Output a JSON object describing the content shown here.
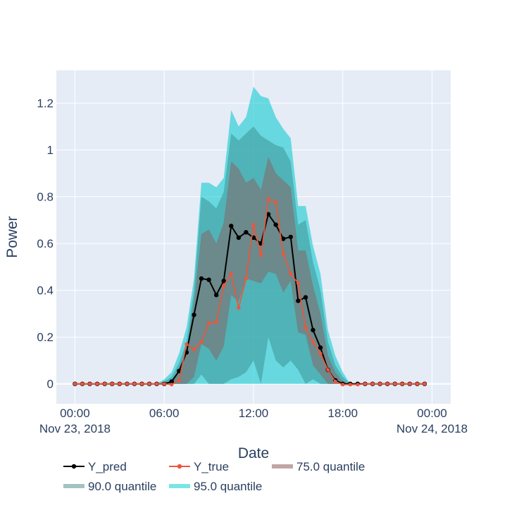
{
  "chart_data": {
    "type": "line",
    "xlabel": "Date",
    "ylabel": "Power",
    "x_domain_hours": [
      -1.25,
      25.25
    ],
    "x_ticks": [
      {
        "hour": 0,
        "time": "00:00",
        "date": "Nov 23, 2018"
      },
      {
        "hour": 6,
        "time": "06:00",
        "date": ""
      },
      {
        "hour": 12,
        "time": "12:00",
        "date": ""
      },
      {
        "hour": 18,
        "time": "18:00",
        "date": ""
      },
      {
        "hour": 24,
        "time": "00:00",
        "date": "Nov 24, 2018"
      }
    ],
    "ylim": [
      -0.085,
      1.34
    ],
    "y_ticks": [
      0,
      0.2,
      0.4,
      0.6,
      0.8,
      1,
      1.2
    ],
    "y_tick_labels": [
      "0",
      "0.2",
      "0.4",
      "0.6",
      "0.8",
      "1",
      "1.2"
    ],
    "grid": true,
    "legend_position": "bottom-left",
    "x_hours": [
      0,
      0.5,
      1,
      1.5,
      2,
      2.5,
      3,
      3.5,
      4,
      4.5,
      5,
      5.5,
      6,
      6.5,
      7,
      7.5,
      8,
      8.5,
      9,
      9.5,
      10,
      10.5,
      11,
      11.5,
      12,
      12.5,
      13,
      13.5,
      14,
      14.5,
      15,
      15.5,
      16,
      16.5,
      17,
      17.5,
      18,
      18.5,
      19,
      19.5,
      20,
      20.5,
      21,
      21.5,
      22,
      22.5,
      23,
      23.5
    ],
    "series": [
      {
        "name": "Y_pred",
        "color": "#000000",
        "values": [
          0,
          0,
          0,
          0,
          0,
          0,
          0,
          0,
          0,
          0,
          0,
          0,
          0,
          0.01,
          0.055,
          0.135,
          0.295,
          0.45,
          0.445,
          0.38,
          0.44,
          0.675,
          0.625,
          0.648,
          0.625,
          0.6,
          0.725,
          0.68,
          0.62,
          0.628,
          0.355,
          0.37,
          0.23,
          0.155,
          0.06,
          0.015,
          0,
          0,
          0,
          0,
          0,
          0,
          0,
          0,
          0,
          0,
          0,
          0
        ]
      },
      {
        "name": "Y_true",
        "color": "#ef553b",
        "values": [
          0,
          0,
          0,
          0,
          0,
          0,
          0,
          0,
          0,
          0,
          0,
          0,
          0,
          -0.003,
          0.015,
          0.17,
          0.148,
          0.18,
          0.26,
          0.265,
          0.42,
          0.47,
          0.325,
          0.45,
          0.68,
          0.55,
          0.79,
          0.775,
          0.555,
          0.47,
          0.43,
          0.24,
          0.18,
          0.13,
          0.06,
          0.01,
          -0.003,
          -0.003,
          -0.003,
          0,
          0,
          0,
          0,
          0,
          0,
          0,
          0,
          0
        ]
      }
    ],
    "bands": [
      {
        "name": "95.0 quantile",
        "legend_color": "#7ae6e4",
        "fill": "rgba(0,200,205,0.55)",
        "upper": [
          0,
          0,
          0,
          0,
          0,
          0,
          0,
          0,
          0,
          0,
          0,
          0,
          0.02,
          0.05,
          0.13,
          0.24,
          0.45,
          0.86,
          0.86,
          0.84,
          0.88,
          1.17,
          1.1,
          1.14,
          1.27,
          1.23,
          1.22,
          1.14,
          1.09,
          1.05,
          0.76,
          0.76,
          0.59,
          0.47,
          0.23,
          0.12,
          0.05,
          0,
          0,
          0,
          0,
          0,
          0,
          0,
          0,
          0,
          0,
          0
        ],
        "lower": [
          0,
          0,
          0,
          0,
          0,
          0,
          0,
          0,
          0,
          0,
          0,
          0,
          0,
          0,
          0,
          0,
          0,
          0,
          0,
          0,
          0,
          0,
          0,
          0,
          0,
          0,
          0,
          0,
          0,
          0,
          0,
          0,
          0,
          0,
          0,
          0,
          0,
          0,
          0,
          0,
          0,
          0,
          0,
          0,
          0,
          0,
          0,
          0
        ]
      },
      {
        "name": "90.0 quantile",
        "legend_color": "#a3c3c2",
        "fill": "rgba(60,150,150,0.55)",
        "upper": [
          0,
          0,
          0,
          0,
          0,
          0,
          0,
          0,
          0,
          0,
          0,
          0,
          0.01,
          0.03,
          0.09,
          0.18,
          0.4,
          0.8,
          0.78,
          0.75,
          0.82,
          1.07,
          1.04,
          1.07,
          1.1,
          1.06,
          1.04,
          1.02,
          1.01,
          0.95,
          0.68,
          0.7,
          0.52,
          0.4,
          0.18,
          0.08,
          0.03,
          0,
          0,
          0,
          0,
          0,
          0,
          0,
          0,
          0,
          0,
          0
        ],
        "lower": [
          0,
          0,
          0,
          0,
          0,
          0,
          0,
          0,
          0,
          0,
          0,
          0,
          0,
          0,
          0,
          0,
          0,
          0.04,
          0,
          0,
          0,
          0.02,
          0.03,
          0.05,
          0.1,
          0,
          0.2,
          0.1,
          0.07,
          0.1,
          0.06,
          0,
          0.02,
          0,
          0,
          0,
          0,
          0,
          0,
          0,
          0,
          0,
          0,
          0,
          0,
          0,
          0,
          0
        ]
      },
      {
        "name": "75.0 quantile",
        "legend_color": "#c0a6a6",
        "fill": "rgba(125,115,115,0.65)",
        "upper": [
          0,
          0,
          0,
          0,
          0,
          0,
          0,
          0,
          0,
          0,
          0,
          0,
          0,
          0.01,
          0.06,
          0.14,
          0.35,
          0.64,
          0.66,
          0.6,
          0.69,
          0.95,
          0.92,
          0.86,
          0.88,
          0.83,
          0.97,
          0.9,
          0.87,
          0.84,
          0.57,
          0.57,
          0.42,
          0.3,
          0.12,
          0.05,
          0.01,
          0,
          0,
          0,
          0,
          0,
          0,
          0,
          0,
          0,
          0,
          0
        ],
        "lower": [
          0,
          0,
          0,
          0,
          0,
          0,
          0,
          0,
          0,
          0,
          0,
          0,
          0,
          0,
          0,
          0,
          0.03,
          0.17,
          0.15,
          0.1,
          0.16,
          0.38,
          0.35,
          0.45,
          0.44,
          0.43,
          0.48,
          0.47,
          0.39,
          0.44,
          0.22,
          0.21,
          0.08,
          0.04,
          0,
          0,
          0,
          0,
          0,
          0,
          0,
          0,
          0,
          0,
          0,
          0,
          0,
          0
        ]
      }
    ]
  }
}
